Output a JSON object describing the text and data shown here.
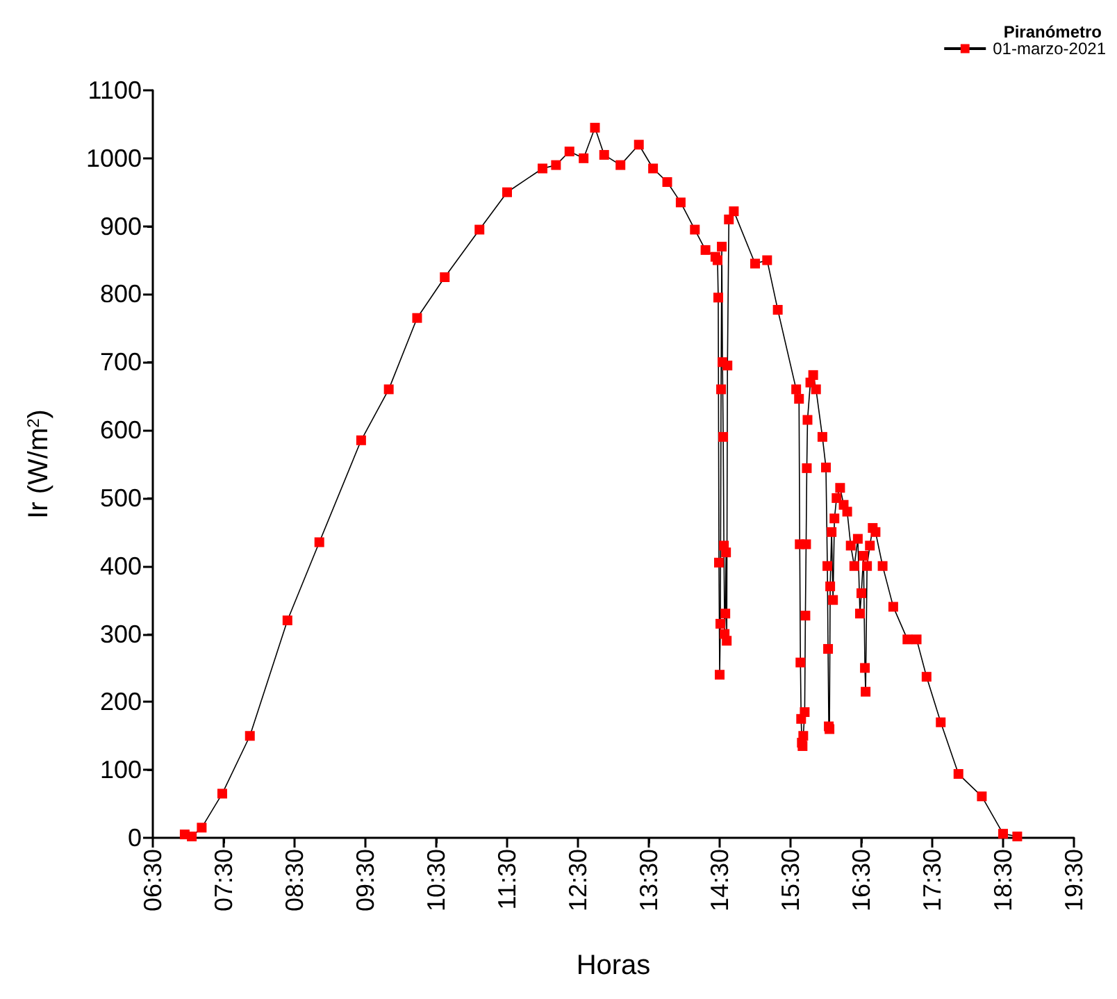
{
  "chart_data": {
    "type": "line",
    "xlabel": "Horas",
    "ylabel": "Ir (W/m$^{2}$)",
    "legend_title": "Piranómetro",
    "legend": "top right",
    "marker": "square",
    "line_style": "solid",
    "grid": false,
    "xlim": [
      6.5,
      19.5
    ],
    "xticks": [
      {
        "value": 6.5,
        "label": "06:30"
      },
      {
        "value": 7.5,
        "label": "07:30"
      },
      {
        "value": 8.5,
        "label": "08:30"
      },
      {
        "value": 9.5,
        "label": "09:30"
      },
      {
        "value": 10.5,
        "label": "10:30"
      },
      {
        "value": 11.5,
        "label": "11:30"
      },
      {
        "value": 12.5,
        "label": "12:30"
      },
      {
        "value": 13.5,
        "label": "13:30"
      },
      {
        "value": 14.5,
        "label": "14:30"
      },
      {
        "value": 15.5,
        "label": "15:30"
      },
      {
        "value": 16.5,
        "label": "16:30"
      },
      {
        "value": 17.5,
        "label": "17:30"
      },
      {
        "value": 18.5,
        "label": "18:30"
      },
      {
        "value": 19.5,
        "label": "19:30"
      }
    ],
    "ylim": [
      0,
      1100
    ],
    "yticks": [
      0,
      100,
      200,
      300,
      400,
      500,
      600,
      700,
      800,
      900,
      1000,
      1100
    ],
    "series": [
      {
        "name": "01-marzo-2021",
        "color": "#ff0000",
        "x": [
          6.95,
          7.05,
          7.19,
          7.48,
          7.87,
          8.4,
          8.85,
          9.44,
          9.83,
          10.23,
          10.62,
          11.11,
          11.5,
          12.0,
          12.19,
          12.38,
          12.58,
          12.74,
          12.87,
          13.1,
          13.36,
          13.56,
          13.76,
          13.95,
          14.15,
          14.3,
          14.44,
          14.47,
          14.48,
          14.49,
          14.5,
          14.51,
          14.52,
          14.53,
          14.54,
          14.55,
          14.56,
          14.57,
          14.58,
          14.59,
          14.6,
          14.61,
          14.63,
          14.7,
          15.0,
          15.17,
          15.32,
          15.58,
          15.62,
          15.63,
          15.64,
          15.65,
          15.66,
          15.67,
          15.68,
          15.7,
          15.71,
          15.72,
          15.73,
          15.74,
          15.78,
          15.82,
          15.86,
          15.95,
          16.0,
          16.02,
          16.03,
          16.04,
          16.05,
          16.06,
          16.08,
          16.1,
          16.12,
          16.15,
          16.2,
          16.25,
          16.3,
          16.35,
          16.4,
          16.45,
          16.48,
          16.5,
          16.53,
          16.55,
          16.56,
          16.58,
          16.62,
          16.66,
          16.7,
          16.8,
          16.95,
          17.15,
          17.28,
          17.42,
          17.62,
          17.87,
          18.2,
          18.5,
          18.7
        ],
        "values": [
          5,
          2,
          15,
          65,
          150,
          320,
          435,
          585,
          660,
          765,
          825,
          895,
          950,
          985,
          990,
          1010,
          1000,
          1045,
          1005,
          990,
          1020,
          985,
          965,
          935,
          895,
          865,
          855,
          850,
          795,
          405,
          240,
          315,
          660,
          870,
          700,
          590,
          430,
          300,
          330,
          420,
          290,
          695,
          910,
          922,
          845,
          850,
          777,
          660,
          646,
          432,
          258,
          175,
          140,
          135,
          150,
          185,
          327,
          432,
          544,
          615,
          670,
          681,
          660,
          590,
          545,
          400,
          278,
          164,
          160,
          370,
          450,
          350,
          470,
          500,
          515,
          490,
          480,
          430,
          400,
          440,
          330,
          360,
          415,
          250,
          215,
          400,
          430,
          456,
          450,
          400,
          340,
          292,
          292,
          237,
          170,
          94,
          61,
          6,
          2
        ]
      }
    ]
  }
}
